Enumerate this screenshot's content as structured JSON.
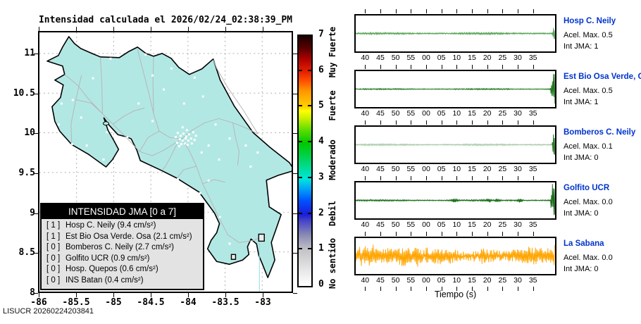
{
  "title": "Intensidad calculada el 2026/02/24_02:38:39_PM",
  "footer": "LISUCR 20260224203841",
  "map": {
    "x_ticks": [
      "-86",
      "-85.5",
      "-85",
      "-84.5",
      "-84",
      "-83.5",
      "-83"
    ],
    "y_ticks": [
      "11",
      "10.5",
      "10",
      "9.5",
      "9",
      "8.5",
      "8"
    ],
    "land_color": "#b2e8e4",
    "road_color": "#b6b6b6"
  },
  "legend": {
    "header": "INTENSIDAD JMA [0 a 7]",
    "items": [
      {
        "jma": "[ 1 ]",
        "label": "Hosp C. Neily (9.4 cm/s²)"
      },
      {
        "jma": "[ 1 ]",
        "label": "Est Bio Osa Verde. Osa (2.1 cm/s²)"
      },
      {
        "jma": "[ 0 ]",
        "label": "Bomberos C. Neily (2.7 cm/s²)"
      },
      {
        "jma": "[ 0 ]",
        "label": "Golfito UCR (0.9 cm/s²)"
      },
      {
        "jma": "[ 0 ]",
        "label": "Hosp. Quepos (0.6 cm/s²)"
      },
      {
        "jma": "[ 0 ]",
        "label": "INS Batan (0.4 cm/s²)"
      }
    ]
  },
  "colorbar": {
    "ticks": [
      "0",
      "1",
      "2",
      "3",
      "4",
      "5",
      "6",
      "7"
    ],
    "categories": [
      {
        "text": "Muy Fuerte",
        "v": 6.5
      },
      {
        "text": "Fuerte",
        "v": 5.0
      },
      {
        "text": "Moderado",
        "v": 3.5
      },
      {
        "text": "Debil",
        "v": 2.0
      },
      {
        "text": "No sentido",
        "v": 0.6
      }
    ],
    "gradient": [
      [
        "#ffffff",
        0
      ],
      [
        "#e8e8e8",
        0.06
      ],
      [
        "#c4c4c8",
        0.143
      ],
      [
        "#8e8eb4",
        0.2
      ],
      [
        "#4646c8",
        0.26
      ],
      [
        "#1c1cd8",
        0.286
      ],
      [
        "#0050ff",
        0.34
      ],
      [
        "#00a8f8",
        0.39
      ],
      [
        "#00e8d8",
        0.429
      ],
      [
        "#00dc9c",
        0.47
      ],
      [
        "#00d24a",
        0.52
      ],
      [
        "#00c800",
        0.571
      ],
      [
        "#55dc00",
        0.62
      ],
      [
        "#c8f000",
        0.67
      ],
      [
        "#ffff00",
        0.7
      ],
      [
        "#ffd400",
        0.714
      ],
      [
        "#ff9600",
        0.78
      ],
      [
        "#ff5000",
        0.82
      ],
      [
        "#e62000",
        0.857
      ],
      [
        "#aa0000",
        0.91
      ],
      [
        "#5a0000",
        0.95
      ],
      [
        "#1c0000",
        1
      ]
    ]
  },
  "seismograms": {
    "time_ticks": [
      "40",
      "45",
      "50",
      "55",
      "00",
      "05",
      "10",
      "15",
      "20",
      "25",
      "30",
      "35"
    ],
    "xlabel": "Tiempo (s)",
    "stations": [
      {
        "name": "Hosp C. Neily",
        "acel": "Acel. Max. 0.5",
        "jma": "Int JMA: 1",
        "color": "#56a556",
        "render": {
          "style": "quiet",
          "noise": 1.1,
          "spike": 8,
          "spikeWidth": 4
        }
      },
      {
        "name": "Est Bio Osa Verde, Osa",
        "acel": "Acel. Max. 0.5",
        "jma": "Int JMA: 1",
        "color": "#1d7a1d",
        "render": {
          "style": "quiet",
          "noise": 0.7,
          "spike": 25,
          "spikeWidth": 7
        }
      },
      {
        "name": "Bomberos C. Neily",
        "acel": "Acel. Max. 0.1",
        "jma": "Int JMA: 0",
        "color": "#a9cda9",
        "render": {
          "style": "quiet",
          "noise": 1.0,
          "spike": 22,
          "spikeWidth": 4,
          "spikeColor": "#2e7d2e"
        }
      },
      {
        "name": "Golfito UCR",
        "acel": "Acel. Max. 0.0",
        "jma": "Int JMA: 0",
        "color": "#1a6e1a",
        "render": {
          "style": "quiet",
          "noise": 0.9,
          "spike": 25,
          "spikeWidth": 7,
          "bumps": [
            {
              "x": 140,
              "w": 6,
              "a": 3
            },
            {
              "x": 189,
              "w": 5,
              "a": 2.5
            },
            {
              "x": 201,
              "w": 4,
              "a": 2
            },
            {
              "x": 233,
              "w": 5,
              "a": 3
            }
          ]
        }
      },
      {
        "name": "La Sabana",
        "acel": "Acel. Max. 0.0",
        "jma": "Int JMA: 0",
        "color": "#ffa500",
        "render": {
          "style": "noisy",
          "noise": 10
        }
      }
    ]
  },
  "chart_data": [
    {
      "type": "map",
      "title": "Intensidad calculada el 2026/02/24_02:38:39_PM",
      "region": "Costa Rica",
      "x_ticks": [
        -86,
        -85.5,
        -85,
        -84.5,
        -84,
        -83.5,
        -83
      ],
      "y_ticks": [
        8,
        8.5,
        9,
        9.5,
        10,
        10.5,
        11
      ],
      "xlim": [
        -86,
        -82.6
      ],
      "ylim": [
        8,
        11.27
      ],
      "grid": true,
      "colorbar": {
        "label_range": [
          0,
          7
        ],
        "categories": [
          "No sentido",
          "Debil",
          "Moderado",
          "Fuerte",
          "Muy Fuerte"
        ]
      },
      "stations": [
        {
          "name": "Hosp C. Neily",
          "int_jma": 1,
          "acel_max_cm_s2": 9.4
        },
        {
          "name": "Est Bio Osa Verde. Osa",
          "int_jma": 1,
          "acel_max_cm_s2": 2.1
        },
        {
          "name": "Bomberos C. Neily",
          "int_jma": 0,
          "acel_max_cm_s2": 2.7
        },
        {
          "name": "Golfito UCR",
          "int_jma": 0,
          "acel_max_cm_s2": 0.9
        },
        {
          "name": "Hosp. Quepos",
          "int_jma": 0,
          "acel_max_cm_s2": 0.6
        },
        {
          "name": "INS Batan",
          "int_jma": 0,
          "acel_max_cm_s2": 0.4
        }
      ]
    },
    {
      "type": "line",
      "subtype": "seismogram-strip",
      "xlabel": "Tiempo (s)",
      "x_tick_labels": [
        "40",
        "45",
        "50",
        "55",
        "00",
        "05",
        "10",
        "15",
        "20",
        "25",
        "30",
        "35"
      ],
      "series": [
        {
          "name": "Hosp C. Neily",
          "acel_max": 0.5,
          "int_jma": 1,
          "color": "#56a556",
          "shape": "flat-noise-with-spike-at-end"
        },
        {
          "name": "Est Bio Osa Verde, Osa",
          "acel_max": 0.5,
          "int_jma": 1,
          "color": "#1d7a1d",
          "shape": "flat-noise-with-large-spike-at-end"
        },
        {
          "name": "Bomberos C. Neily",
          "acel_max": 0.1,
          "int_jma": 0,
          "color": "#a9cda9",
          "shape": "flat-noise-with-spike-at-end"
        },
        {
          "name": "Golfito UCR",
          "acel_max": 0.0,
          "int_jma": 0,
          "color": "#1a6e1a",
          "shape": "flat-noise-small-bumps-spike-at-end"
        },
        {
          "name": "La Sabana",
          "acel_max": 0.0,
          "int_jma": 0,
          "color": "#ffa500",
          "shape": "continuous-dense-noise"
        }
      ]
    }
  ]
}
